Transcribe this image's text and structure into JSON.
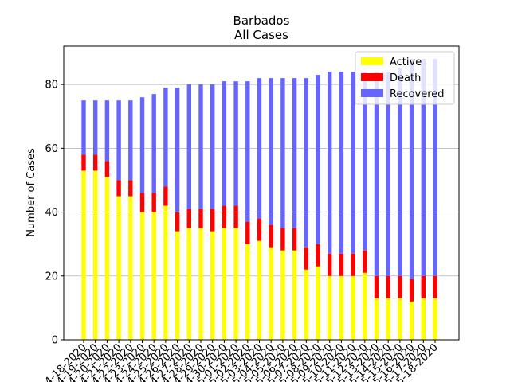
{
  "chart_data": {
    "type": "bar",
    "stacked": true,
    "title": "Barbados",
    "subtitle": "All Cases",
    "xlabel": "",
    "ylabel": "Number of Cases",
    "ylim": [
      0,
      92
    ],
    "yticks": [
      0,
      20,
      40,
      60,
      80
    ],
    "grid": "horizontal",
    "legend_position": "top-right",
    "categories": [
      "04-18-2020",
      "04-19-2020",
      "04-20-2020",
      "04-21-2020",
      "04-22-2020",
      "04-23-2020",
      "04-24-2020",
      "04-25-2020",
      "04-26-2020",
      "04-27-2020",
      "04-28-2020",
      "04-29-2020",
      "04-30-2020",
      "05-01-2020",
      "05-02-2020",
      "05-03-2020",
      "05-04-2020",
      "05-05-2020",
      "05-06-2020",
      "05-07-2020",
      "05-08-2020",
      "05-09-2020",
      "05-10-2020",
      "05-11-2020",
      "05-12-2020",
      "05-13-2020",
      "05-14-2020",
      "05-15-2020",
      "05-16-2020",
      "05-17-2020",
      "05-18-2020"
    ],
    "tick_labels": [
      "4-18-2020",
      "4-19-2020",
      "4-20-2020",
      "4-21-2020",
      "4-22-2020",
      "4-23-2020",
      "4-24-2020",
      "4-25-2020",
      "4-26-2020",
      "4-27-2020",
      "4-28-2020",
      "4-29-2020",
      "4-30-2020",
      "5-01-2020",
      "5-02-2020",
      "5-03-2020",
      "5-04-2020",
      "5-05-2020",
      "5-06-2020",
      "5-07-2020",
      "5-08-2020",
      "5-09-2020",
      "5-10-2020",
      "5-11-2020",
      "5-12-2020",
      "5-13-2020",
      "5-14-2020",
      "5-15-2020",
      "5-16-2020",
      "5-17-2020",
      "5-18-2020"
    ],
    "series": [
      {
        "name": "Active",
        "color": "#ffff00",
        "values": [
          53,
          53,
          51,
          45,
          45,
          40,
          40,
          42,
          34,
          35,
          35,
          34,
          35,
          35,
          30,
          31,
          29,
          28,
          28,
          22,
          23,
          20,
          20,
          20,
          21,
          13,
          13,
          13,
          12,
          13,
          13
        ]
      },
      {
        "name": "Death",
        "color": "#ff0000",
        "values": [
          5,
          5,
          5,
          5,
          5,
          6,
          6,
          6,
          6,
          6,
          6,
          7,
          7,
          7,
          7,
          7,
          7,
          7,
          7,
          7,
          7,
          7,
          7,
          7,
          7,
          7,
          7,
          7,
          7,
          7,
          7
        ]
      },
      {
        "name": "Recovered",
        "color": "#6666ff",
        "values": [
          17,
          17,
          19,
          25,
          25,
          30,
          31,
          31,
          39,
          39,
          39,
          39,
          39,
          39,
          44,
          44,
          46,
          47,
          47,
          53,
          53,
          57,
          57,
          57,
          56,
          64,
          64,
          65,
          69,
          68,
          68
        ]
      }
    ]
  }
}
